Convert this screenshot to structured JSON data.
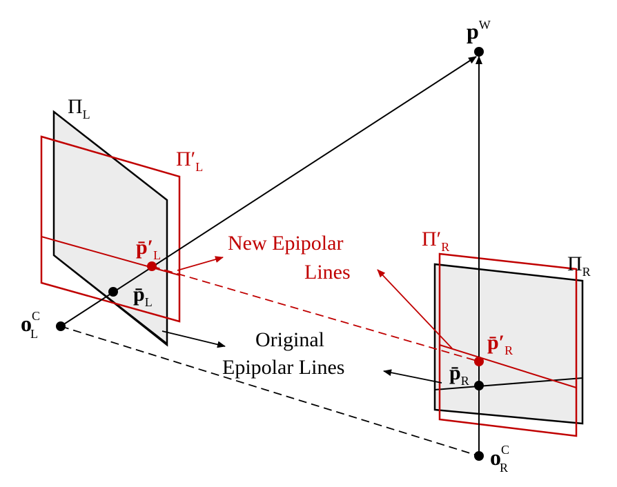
{
  "colors": {
    "black": "#000000",
    "red": "#c00000",
    "plane_fill": "#ececec"
  },
  "labels": {
    "world_point": {
      "base": "p",
      "sup": "W"
    },
    "left_original_plane": {
      "base": "Π",
      "sub": "L"
    },
    "left_rectified_plane": {
      "base": "Π′",
      "sub": "L"
    },
    "right_original_plane": {
      "base": "Π",
      "sub": "R"
    },
    "right_rectified_plane": {
      "base": "Π′",
      "sub": "R"
    },
    "left_rectified_point": {
      "base": "p̄′",
      "sub": "L"
    },
    "left_original_point": {
      "base": "p̄",
      "sub": "L"
    },
    "right_rectified_point": {
      "base": "p̄′",
      "sub": "R"
    },
    "right_original_point": {
      "base": "p̄",
      "sub": "R"
    },
    "left_camera_center": {
      "base": "o",
      "sub": "L",
      "sup": "C"
    },
    "right_camera_center": {
      "base": "o",
      "sub": "R",
      "sup": "C"
    }
  },
  "annotations": {
    "new_epipolar": {
      "line1": "New Epipolar",
      "line2": "Lines"
    },
    "original_epipolar": {
      "line1": "Original",
      "line2": "Epipolar Lines"
    }
  }
}
